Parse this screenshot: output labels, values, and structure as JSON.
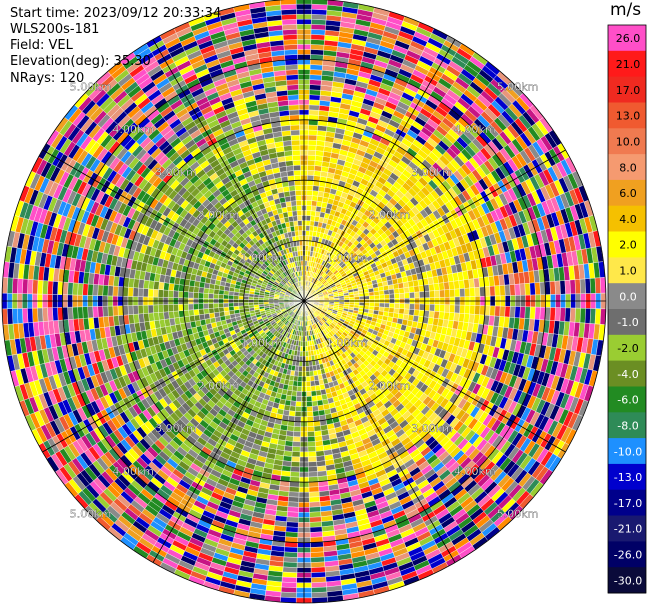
{
  "header": {
    "start_time": "Start time: 2023/09/12 20:33:34",
    "instrument": "WLS200s-181",
    "field": "Field: VEL",
    "elevation": "Elevation(deg): 35.30",
    "nrays": "NRays: 120"
  },
  "colorbar": {
    "unit": "m/s",
    "ticks": [
      "26.0",
      "21.0",
      "17.0",
      "13.0",
      "10.0",
      "8.0",
      "6.0",
      "4.0",
      "2.0",
      "1.0",
      "0.0",
      "-1.0",
      "-2.0",
      "-4.0",
      "-6.0",
      "-8.0",
      "-10.0",
      "-13.0",
      "-17.0",
      "-21.0",
      "-26.0",
      "-30.0"
    ],
    "colors": [
      "#ff4fc8",
      "#ff1a1a",
      "#f02a20",
      "#f05a30",
      "#f07a50",
      "#f59a70",
      "#f0a020",
      "#f5c000",
      "#ffff00",
      "#ffe84a",
      "#8a8a8a",
      "#6e6e6e",
      "#9acd32",
      "#6b8e23",
      "#228b22",
      "#2e8b57",
      "#1e90ff",
      "#0000cd",
      "#00008b",
      "#191970",
      "#000066",
      "#0a0a3a"
    ]
  },
  "range_rings": {
    "labels": [
      "1.00km",
      "2.00km",
      "3.00km",
      "4.00km",
      "5.00km"
    ]
  },
  "ppi": {
    "num_rays": 120,
    "max_range_km": 5.0
  }
}
